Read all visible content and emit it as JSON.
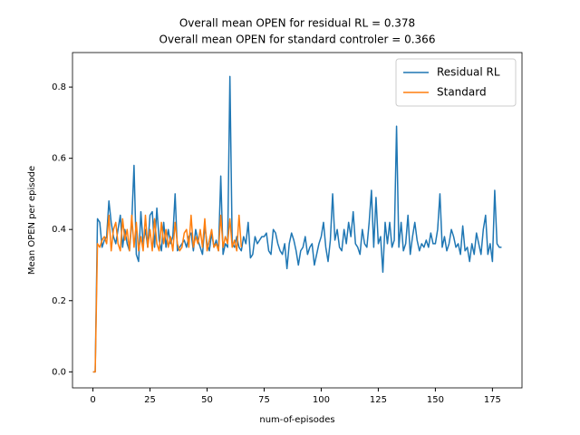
{
  "chart_data": {
    "type": "line",
    "title": "Overall mean OPEN for residual RL = 0.378",
    "subtitle": "Overall mean OPEN for standard controler = 0.366",
    "xlabel": "num-of-episodes",
    "ylabel": "Mean OPEN per episode",
    "xlim": [
      -8.95,
      187.95
    ],
    "ylim": [
      -0.045,
      0.897
    ],
    "xticks": [
      0,
      25,
      50,
      75,
      100,
      125,
      150,
      175
    ],
    "yticks": [
      0.0,
      0.2,
      0.4,
      0.6,
      0.8
    ],
    "legend": "upper right",
    "series": [
      {
        "name": "Residual RL",
        "color": "#1f77b4",
        "x": [
          0,
          1,
          2,
          3,
          4,
          5,
          6,
          7,
          8,
          9,
          10,
          11,
          12,
          13,
          14,
          15,
          16,
          17,
          18,
          19,
          20,
          21,
          22,
          23,
          24,
          25,
          26,
          27,
          28,
          29,
          30,
          31,
          32,
          33,
          34,
          35,
          36,
          37,
          38,
          39,
          40,
          41,
          42,
          43,
          44,
          45,
          46,
          47,
          48,
          49,
          50,
          51,
          52,
          53,
          54,
          55,
          56,
          57,
          58,
          59,
          60,
          61,
          62,
          63,
          64,
          65,
          66,
          67,
          68,
          69,
          70,
          71,
          72,
          73,
          74,
          75,
          76,
          77,
          78,
          79,
          80,
          81,
          82,
          83,
          84,
          85,
          86,
          87,
          88,
          89,
          90,
          91,
          92,
          93,
          94,
          95,
          96,
          97,
          98,
          99,
          100,
          101,
          102,
          103,
          104,
          105,
          106,
          107,
          108,
          109,
          110,
          111,
          112,
          113,
          114,
          115,
          116,
          117,
          118,
          119,
          120,
          121,
          122,
          123,
          124,
          125,
          126,
          127,
          128,
          129,
          130,
          131,
          132,
          133,
          134,
          135,
          136,
          137,
          138,
          139,
          140,
          141,
          142,
          143,
          144,
          145,
          146,
          147,
          148,
          149,
          150,
          151,
          152,
          153,
          154,
          155,
          156,
          157,
          158,
          159,
          160,
          161,
          162,
          163,
          164,
          165,
          166,
          167,
          168,
          169,
          170,
          171,
          172,
          173,
          174,
          175,
          176,
          177,
          178,
          179
        ],
        "values": [
          0.0,
          0.0,
          0.43,
          0.42,
          0.35,
          0.37,
          0.38,
          0.48,
          0.42,
          0.38,
          0.36,
          0.4,
          0.44,
          0.35,
          0.4,
          0.36,
          0.34,
          0.42,
          0.58,
          0.33,
          0.31,
          0.45,
          0.36,
          0.4,
          0.35,
          0.44,
          0.45,
          0.35,
          0.46,
          0.37,
          0.34,
          0.42,
          0.35,
          0.4,
          0.36,
          0.38,
          0.5,
          0.34,
          0.35,
          0.36,
          0.37,
          0.35,
          0.38,
          0.39,
          0.34,
          0.4,
          0.37,
          0.35,
          0.33,
          0.41,
          0.36,
          0.34,
          0.39,
          0.35,
          0.37,
          0.34,
          0.55,
          0.33,
          0.36,
          0.35,
          0.83,
          0.36,
          0.35,
          0.38,
          0.35,
          0.34,
          0.38,
          0.36,
          0.42,
          0.32,
          0.33,
          0.38,
          0.36,
          0.37,
          0.38,
          0.38,
          0.39,
          0.34,
          0.33,
          0.4,
          0.39,
          0.36,
          0.34,
          0.33,
          0.36,
          0.29,
          0.36,
          0.39,
          0.37,
          0.34,
          0.3,
          0.34,
          0.35,
          0.38,
          0.33,
          0.35,
          0.36,
          0.3,
          0.33,
          0.36,
          0.38,
          0.42,
          0.35,
          0.31,
          0.37,
          0.5,
          0.37,
          0.4,
          0.35,
          0.34,
          0.4,
          0.36,
          0.42,
          0.38,
          0.45,
          0.36,
          0.35,
          0.33,
          0.4,
          0.36,
          0.35,
          0.42,
          0.51,
          0.35,
          0.49,
          0.36,
          0.38,
          0.28,
          0.42,
          0.36,
          0.42,
          0.35,
          0.37,
          0.69,
          0.35,
          0.42,
          0.34,
          0.36,
          0.44,
          0.33,
          0.38,
          0.42,
          0.37,
          0.34,
          0.36,
          0.35,
          0.37,
          0.35,
          0.39,
          0.36,
          0.36,
          0.4,
          0.5,
          0.35,
          0.38,
          0.34,
          0.36,
          0.4,
          0.38,
          0.35,
          0.36,
          0.33,
          0.41,
          0.34,
          0.35,
          0.31,
          0.36,
          0.33,
          0.39,
          0.36,
          0.33,
          0.4,
          0.44,
          0.33,
          0.36,
          0.31,
          0.51,
          0.36,
          0.35,
          0.35
        ]
      },
      {
        "name": "Standard",
        "color": "#ff7f0e",
        "x": [
          0,
          1,
          2,
          3,
          4,
          5,
          6,
          7,
          8,
          9,
          10,
          11,
          12,
          13,
          14,
          15,
          16,
          17,
          18,
          19,
          20,
          21,
          22,
          23,
          24,
          25,
          26,
          27,
          28,
          29,
          30,
          31,
          32,
          33,
          34,
          35,
          36,
          37,
          38,
          39,
          40,
          41,
          42,
          43,
          44,
          45,
          46,
          47,
          48,
          49,
          50,
          51,
          52,
          53,
          54,
          55,
          56,
          57,
          58,
          59,
          60,
          61,
          62,
          63,
          64,
          65
        ],
        "values": [
          0.0,
          0.0,
          0.36,
          0.35,
          0.37,
          0.38,
          0.36,
          0.44,
          0.34,
          0.4,
          0.42,
          0.36,
          0.34,
          0.43,
          0.37,
          0.4,
          0.34,
          0.44,
          0.35,
          0.42,
          0.34,
          0.38,
          0.34,
          0.44,
          0.35,
          0.4,
          0.34,
          0.43,
          0.36,
          0.34,
          0.42,
          0.36,
          0.4,
          0.35,
          0.38,
          0.34,
          0.42,
          0.36,
          0.34,
          0.35,
          0.39,
          0.4,
          0.35,
          0.44,
          0.35,
          0.38,
          0.36,
          0.4,
          0.35,
          0.43,
          0.34,
          0.37,
          0.4,
          0.35,
          0.36,
          0.34,
          0.44,
          0.35,
          0.38,
          0.36,
          0.43,
          0.35,
          0.37,
          0.34,
          0.44,
          0.35
        ]
      }
    ]
  }
}
